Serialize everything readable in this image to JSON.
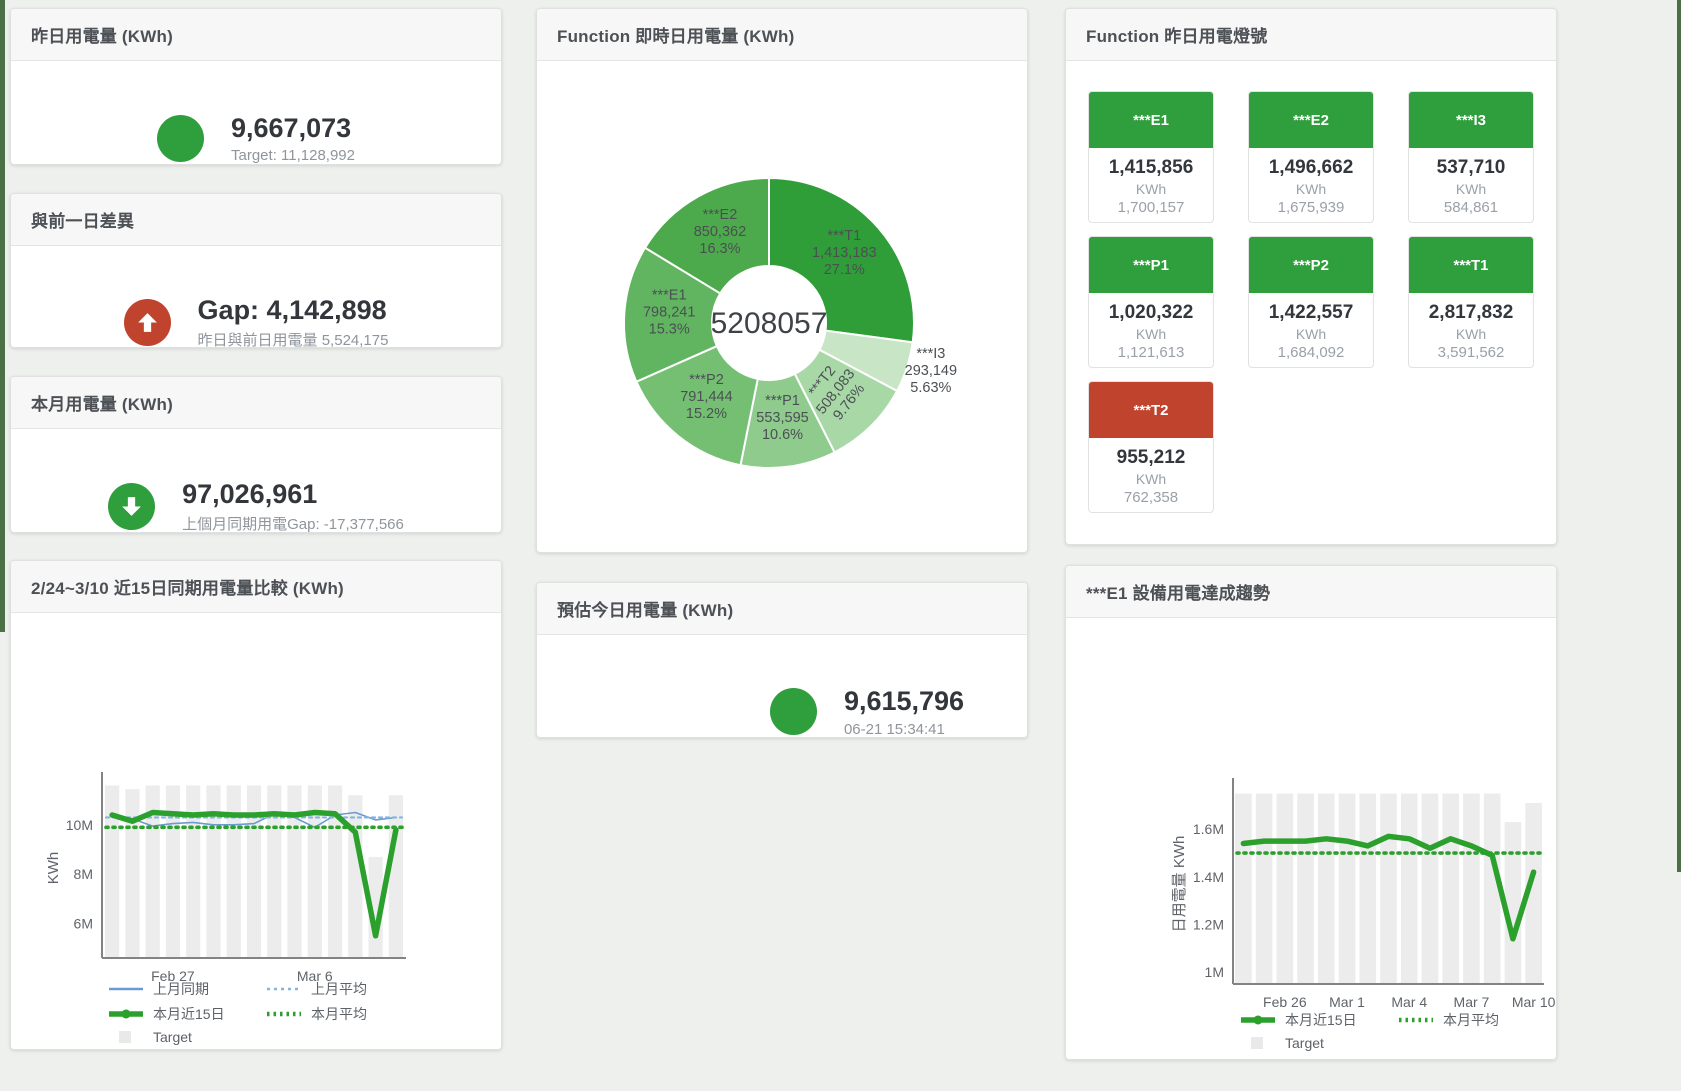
{
  "panels": {
    "yesterday": {
      "title": "昨日用電量 (KWh)",
      "value": "9,667,073",
      "sub": "Target: 11,128,992"
    },
    "diff_prev_day": {
      "title": "與前一日差異",
      "value": "Gap: 4,142,898",
      "sub": "昨日與前日用電量 5,524,175"
    },
    "month": {
      "title": "本月用電量 (KWh)",
      "value": "97,026,961",
      "sub": "上個月同期用電Gap: -17,377,566"
    },
    "estimate_today": {
      "title": "預估今日用電量 (KWh)",
      "value": "9,615,796",
      "sub": "06-21 15:34:41"
    },
    "lights": {
      "title": "Function 昨日用電燈號",
      "unit": "KWh",
      "tiles": [
        {
          "label": "***E1",
          "value": "1,415,856",
          "unit": "KWh",
          "sub": "1,700,157",
          "status": "green"
        },
        {
          "label": "***E2",
          "value": "1,496,662",
          "unit": "KWh",
          "sub": "1,675,939",
          "status": "green"
        },
        {
          "label": "***I3",
          "value": "537,710",
          "unit": "KWh",
          "sub": "584,861",
          "status": "green"
        },
        {
          "label": "***P1",
          "value": "1,020,322",
          "unit": "KWh",
          "sub": "1,121,613",
          "status": "green"
        },
        {
          "label": "***P2",
          "value": "1,422,557",
          "unit": "KWh",
          "sub": "1,684,092",
          "status": "green"
        },
        {
          "label": "***T1",
          "value": "2,817,832",
          "unit": "KWh",
          "sub": "3,591,562",
          "status": "green"
        },
        {
          "label": "***T2",
          "value": "955,212",
          "unit": "KWh",
          "sub": "762,358",
          "status": "red"
        }
      ]
    }
  },
  "colors": {
    "green": "#2f9e3c",
    "red": "#c0432d",
    "bar": "#ececec",
    "blue": "#6b9bd2",
    "blue_light": "#85b4e0",
    "line_green": "#2ca02c"
  },
  "chart_data": [
    {
      "id": "realtime_donut",
      "type": "pie",
      "title": "Function 即時日用電量 (KWh)",
      "center_label": "5208057",
      "legend_position": "none",
      "slices": [
        {
          "name": "***T1",
          "value": "1,413,183",
          "pct": "27.1%",
          "share": 27.1,
          "color": "#2f9e38",
          "label_pos": "inside"
        },
        {
          "name": "***I3",
          "value": "293,149",
          "pct": "5.63%",
          "share": 5.63,
          "color": "#c8e6c5",
          "label_pos": "outside"
        },
        {
          "name": "***T2",
          "value": "508,083",
          "pct": "9.76%",
          "share": 9.76,
          "color": "#a9d8a7",
          "label_pos": "inside",
          "label_rotate": -52
        },
        {
          "name": "***P1",
          "value": "553,595",
          "pct": "10.6%",
          "share": 10.6,
          "color": "#8ecb8c",
          "label_pos": "inside"
        },
        {
          "name": "***P2",
          "value": "791,444",
          "pct": "15.2%",
          "share": 15.2,
          "color": "#75bf73",
          "label_pos": "inside"
        },
        {
          "name": "***E1",
          "value": "798,241",
          "pct": "15.3%",
          "share": 15.3,
          "color": "#61b560",
          "label_pos": "inside"
        },
        {
          "name": "***E2",
          "value": "850,362",
          "pct": "16.3%",
          "share": 16.3,
          "color": "#4daa4c",
          "label_pos": "inside"
        }
      ]
    },
    {
      "id": "compare15",
      "type": "line",
      "title": "2/24~3/10 近15日同期用電量比較 (KWh)",
      "ylabel": "KWh",
      "ylim": [
        4.6,
        11.9
      ],
      "unit": "M KWh",
      "grid": false,
      "yticks": [
        {
          "v": 6,
          "label": "6M"
        },
        {
          "v": 8,
          "label": "8M"
        },
        {
          "v": 10,
          "label": "10M"
        }
      ],
      "xticks": [
        {
          "i": 3,
          "label": "Feb 27"
        },
        {
          "i": 10,
          "label": "Mar 6"
        }
      ],
      "bars": {
        "name": "Target",
        "color": "#ececec",
        "values": [
          11.6,
          11.45,
          11.6,
          11.6,
          11.6,
          11.6,
          11.6,
          11.6,
          11.6,
          11.6,
          11.6,
          11.6,
          11.2,
          8.7,
          11.2
        ]
      },
      "series": [
        {
          "name": "上月同期",
          "swatch": "line",
          "color": "#6b9bd2",
          "width": 1.6,
          "values": [
            10.35,
            10.25,
            9.95,
            10.05,
            10.1,
            10.0,
            10.0,
            10.05,
            10.45,
            10.3,
            9.9,
            10.4,
            10.5,
            10.2,
            10.3
          ]
        },
        {
          "name": "上月平均",
          "swatch": "dash",
          "color": "#85b4e0",
          "width": 2.2,
          "dash": "3 4",
          "constant": 10.3
        },
        {
          "name": "本月近15日",
          "swatch": "thick",
          "color": "#2ca02c",
          "width": 5.5,
          "values": [
            10.4,
            10.15,
            10.5,
            10.45,
            10.4,
            10.45,
            10.4,
            10.4,
            10.45,
            10.4,
            10.5,
            10.45,
            9.7,
            5.5,
            9.8
          ]
        },
        {
          "name": "本月平均",
          "swatch": "dots",
          "color": "#2ca02c",
          "width": 3.6,
          "dash": "2 5",
          "constant": 9.9
        }
      ],
      "legend": [
        [
          {
            "type": "line",
            "color": "#6b9bd2",
            "label": "上月同期"
          },
          {
            "type": "dash",
            "color": "#85b4e0",
            "label": "上月平均"
          }
        ],
        [
          {
            "type": "thick",
            "color": "#2ca02c",
            "label": "本月近15日"
          },
          {
            "type": "dots",
            "color": "#2ca02c",
            "label": "本月平均"
          }
        ],
        [
          {
            "type": "square",
            "color": "#e9e9e9",
            "label": "Target"
          }
        ]
      ]
    },
    {
      "id": "e1_trend",
      "type": "line",
      "title": "***E1 設備用電達成趨勢",
      "ylabel": "日用電量 KWh",
      "ylim": [
        0.95,
        1.79
      ],
      "unit": "M KWh",
      "grid": false,
      "yticks": [
        {
          "v": 1,
          "label": "1M"
        },
        {
          "v": 1.2,
          "label": "1.2M"
        },
        {
          "v": 1.4,
          "label": "1.4M"
        },
        {
          "v": 1.6,
          "label": "1.6M"
        }
      ],
      "xticks": [
        {
          "i": 2,
          "label": "Feb 26"
        },
        {
          "i": 5,
          "label": "Mar 1"
        },
        {
          "i": 8,
          "label": "Mar 4"
        },
        {
          "i": 11,
          "label": "Mar 7"
        },
        {
          "i": 14,
          "label": "Mar 10"
        }
      ],
      "bars": {
        "name": "Target",
        "color": "#ececec",
        "values": [
          1.75,
          1.75,
          1.75,
          1.75,
          1.75,
          1.75,
          1.75,
          1.75,
          1.75,
          1.75,
          1.75,
          1.75,
          1.75,
          1.63,
          1.71
        ]
      },
      "series": [
        {
          "name": "本月近15日",
          "swatch": "thick",
          "color": "#2ca02c",
          "width": 5.5,
          "values": [
            1.54,
            1.55,
            1.55,
            1.55,
            1.56,
            1.55,
            1.53,
            1.57,
            1.56,
            1.52,
            1.56,
            1.53,
            1.49,
            1.14,
            1.42
          ]
        },
        {
          "name": "本月平均",
          "swatch": "dots",
          "color": "#2ca02c",
          "width": 3.6,
          "dash": "2 5",
          "constant": 1.5
        }
      ],
      "legend": [
        [
          {
            "type": "thick",
            "color": "#2ca02c",
            "label": "本月近15日"
          },
          {
            "type": "dots",
            "color": "#2ca02c",
            "label": "本月平均"
          }
        ],
        [
          {
            "type": "square",
            "color": "#e9e9e9",
            "label": "Target"
          }
        ]
      ]
    }
  ]
}
